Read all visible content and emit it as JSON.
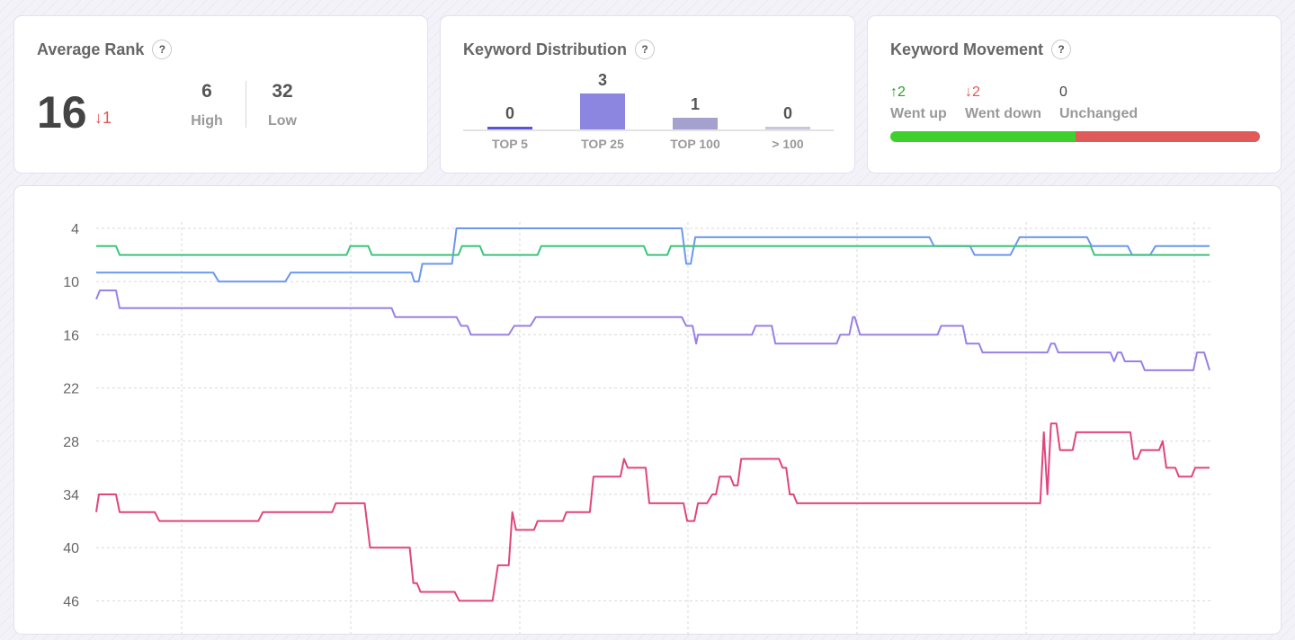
{
  "average_rank": {
    "title": "Average Rank",
    "help": "?",
    "value": "16",
    "change": "↓1",
    "high_value": "6",
    "high_label": "High",
    "low_value": "32",
    "low_label": "Low"
  },
  "keyword_distribution": {
    "title": "Keyword Distribution",
    "help": "?",
    "buckets": [
      {
        "label": "TOP 5",
        "count": 0,
        "count_text": "0",
        "color": "#5b54d6"
      },
      {
        "label": "TOP 25",
        "count": 3,
        "count_text": "3",
        "color": "#8c86e0"
      },
      {
        "label": "TOP 100",
        "count": 1,
        "count_text": "1",
        "color": "#a4a1cf"
      },
      {
        "label": "> 100",
        "count": 0,
        "count_text": "0",
        "color": "#c8c6de"
      }
    ]
  },
  "keyword_movement": {
    "title": "Keyword Movement",
    "help": "?",
    "up_value": "↑2",
    "up_label": "Went up",
    "down_value": "↓2",
    "down_label": "Went down",
    "unchanged_value": "0",
    "unchanged_label": "Unchanged",
    "up_count": 2,
    "down_count": 2,
    "unchanged_count": 0,
    "colors": {
      "up": "#3ed12e",
      "down": "#e05a5a",
      "up_text": "#2a9d2a",
      "down_text": "#e05656"
    }
  },
  "chart_data": {
    "type": "line",
    "y_inverted": true,
    "ylim": [
      1,
      47
    ],
    "yticks": [
      4,
      10,
      16,
      22,
      28,
      34,
      40,
      46
    ],
    "grid": true,
    "series": [
      {
        "color": "#6b98ee",
        "points": [
          [
            0,
            9
          ],
          [
            130,
            9
          ],
          [
            136,
            10
          ],
          [
            210,
            10
          ],
          [
            216,
            9
          ],
          [
            350,
            9
          ],
          [
            353,
            10
          ],
          [
            358,
            10
          ],
          [
            362,
            8
          ],
          [
            395,
            8
          ],
          [
            400,
            4
          ],
          [
            650,
            4
          ],
          [
            655,
            8
          ],
          [
            660,
            8
          ],
          [
            665,
            5
          ],
          [
            925,
            5
          ],
          [
            930,
            6
          ],
          [
            970,
            6
          ],
          [
            975,
            7
          ],
          [
            1015,
            7
          ],
          [
            1025,
            5
          ],
          [
            1100,
            5
          ],
          [
            1105,
            6
          ],
          [
            1145,
            6
          ],
          [
            1150,
            7
          ],
          [
            1170,
            7
          ],
          [
            1176,
            6
          ],
          [
            1236,
            6
          ]
        ]
      },
      {
        "color": "#3ec47a",
        "points": [
          [
            0,
            6
          ],
          [
            22,
            6
          ],
          [
            26,
            7
          ],
          [
            278,
            7
          ],
          [
            282,
            6
          ],
          [
            302,
            6
          ],
          [
            306,
            7
          ],
          [
            402,
            7
          ],
          [
            406,
            6
          ],
          [
            426,
            6
          ],
          [
            430,
            7
          ],
          [
            490,
            7
          ],
          [
            494,
            6
          ],
          [
            608,
            6
          ],
          [
            612,
            7
          ],
          [
            634,
            7
          ],
          [
            638,
            6
          ],
          [
            1104,
            6
          ],
          [
            1108,
            7
          ],
          [
            1236,
            7
          ]
        ]
      },
      {
        "color": "#9a80e6",
        "points": [
          [
            0,
            12
          ],
          [
            4,
            11
          ],
          [
            22,
            11
          ],
          [
            26,
            13
          ],
          [
            328,
            13
          ],
          [
            332,
            14
          ],
          [
            400,
            14
          ],
          [
            405,
            15
          ],
          [
            412,
            15
          ],
          [
            416,
            16
          ],
          [
            458,
            16
          ],
          [
            464,
            15
          ],
          [
            482,
            15
          ],
          [
            488,
            14
          ],
          [
            650,
            14
          ],
          [
            655,
            15
          ],
          [
            662,
            15
          ],
          [
            666,
            17
          ],
          [
            668,
            16
          ],
          [
            728,
            16
          ],
          [
            732,
            15
          ],
          [
            750,
            15
          ],
          [
            754,
            17
          ],
          [
            822,
            17
          ],
          [
            826,
            16
          ],
          [
            836,
            16
          ],
          [
            840,
            14
          ],
          [
            842,
            14
          ],
          [
            848,
            16
          ],
          [
            934,
            16
          ],
          [
            938,
            15
          ],
          [
            962,
            15
          ],
          [
            966,
            17
          ],
          [
            980,
            17
          ],
          [
            984,
            18
          ],
          [
            1056,
            18
          ],
          [
            1060,
            17
          ],
          [
            1064,
            17
          ],
          [
            1068,
            18
          ],
          [
            1126,
            18
          ],
          [
            1130,
            19
          ],
          [
            1134,
            18
          ],
          [
            1138,
            18
          ],
          [
            1142,
            19
          ],
          [
            1160,
            19
          ],
          [
            1164,
            20
          ],
          [
            1218,
            20
          ],
          [
            1222,
            18
          ],
          [
            1230,
            18
          ],
          [
            1236,
            20
          ]
        ]
      },
      {
        "color": "#e0457c",
        "points": [
          [
            0,
            36
          ],
          [
            3,
            34
          ],
          [
            22,
            34
          ],
          [
            26,
            36
          ],
          [
            65,
            36
          ],
          [
            70,
            37
          ],
          [
            180,
            37
          ],
          [
            185,
            36
          ],
          [
            262,
            36
          ],
          [
            266,
            35
          ],
          [
            298,
            35
          ],
          [
            304,
            40
          ],
          [
            348,
            40
          ],
          [
            352,
            44
          ],
          [
            356,
            44
          ],
          [
            360,
            45
          ],
          [
            398,
            45
          ],
          [
            403,
            46
          ],
          [
            440,
            46
          ],
          [
            446,
            42
          ],
          [
            458,
            42
          ],
          [
            462,
            36
          ],
          [
            466,
            38
          ],
          [
            486,
            38
          ],
          [
            490,
            37
          ],
          [
            518,
            37
          ],
          [
            522,
            36
          ],
          [
            548,
            36
          ],
          [
            552,
            32
          ],
          [
            582,
            32
          ],
          [
            586,
            30
          ],
          [
            590,
            31
          ],
          [
            610,
            31
          ],
          [
            614,
            35
          ],
          [
            652,
            35
          ],
          [
            656,
            37
          ],
          [
            664,
            37
          ],
          [
            668,
            35
          ],
          [
            678,
            35
          ],
          [
            684,
            34
          ],
          [
            688,
            34
          ],
          [
            692,
            32
          ],
          [
            704,
            32
          ],
          [
            708,
            33
          ],
          [
            712,
            33
          ],
          [
            716,
            30
          ],
          [
            758,
            30
          ],
          [
            762,
            31
          ],
          [
            766,
            31
          ],
          [
            770,
            34
          ],
          [
            774,
            34
          ],
          [
            778,
            35
          ],
          [
            1048,
            35
          ],
          [
            1052,
            27
          ],
          [
            1056,
            34
          ],
          [
            1060,
            26
          ],
          [
            1066,
            26
          ],
          [
            1070,
            29
          ],
          [
            1084,
            29
          ],
          [
            1088,
            27
          ],
          [
            1148,
            27
          ],
          [
            1152,
            30
          ],
          [
            1156,
            30
          ],
          [
            1160,
            29
          ],
          [
            1180,
            29
          ],
          [
            1184,
            28
          ],
          [
            1188,
            31
          ],
          [
            1198,
            31
          ],
          [
            1202,
            32
          ],
          [
            1216,
            32
          ],
          [
            1220,
            31
          ],
          [
            1236,
            31
          ]
        ]
      }
    ]
  }
}
